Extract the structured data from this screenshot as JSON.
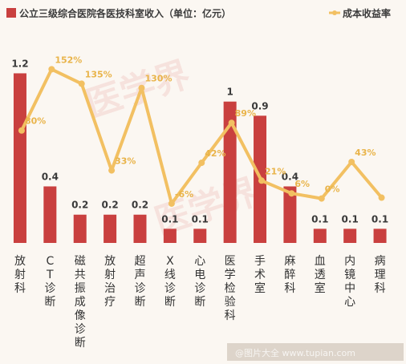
{
  "chart_data": {
    "type": "bar+line",
    "categories": [
      "放射科",
      "CT诊断",
      "磁共振成像诊断",
      "放射治疗",
      "超声诊断",
      "X线诊断",
      "心电诊断",
      "医学检验科",
      "手术室",
      "麻醉科",
      "血透室",
      "内镜中心",
      "病理科"
    ],
    "series": [
      {
        "name": "公立三级综合医院各医技科室收入（单位：亿元）",
        "type": "bar",
        "color": "#c9403f",
        "values": [
          1.2,
          0.4,
          0.2,
          0.2,
          0.2,
          0.1,
          0.1,
          1,
          0.9,
          0.4,
          0.1,
          0.1,
          0.1
        ],
        "labels": [
          "1.2",
          "0.4",
          "0.2",
          "0.2",
          "0.2",
          "0.1",
          "0.1",
          "1",
          "0.9",
          "0.4",
          "0.1",
          "0.1",
          "0.1"
        ]
      },
      {
        "name": "成本收益率",
        "type": "line",
        "color": "#f2c062",
        "values": [
          80,
          152,
          135,
          33,
          130,
          -6,
          42,
          89,
          21,
          6,
          0,
          43,
          1
        ],
        "labels": [
          "80%",
          "152%",
          "135%",
          "33%",
          "130%",
          "-6%",
          "42%",
          "89%",
          "21%",
          "6%",
          "0%",
          "43%",
          ""
        ]
      }
    ],
    "bar_ylim": [
      0,
      1.35
    ],
    "line_ylim": [
      -40,
      175
    ],
    "grid": false,
    "legend": "top"
  },
  "watermark": "医学界",
  "footer_watermark": "@图片大全 www.tupian.com"
}
